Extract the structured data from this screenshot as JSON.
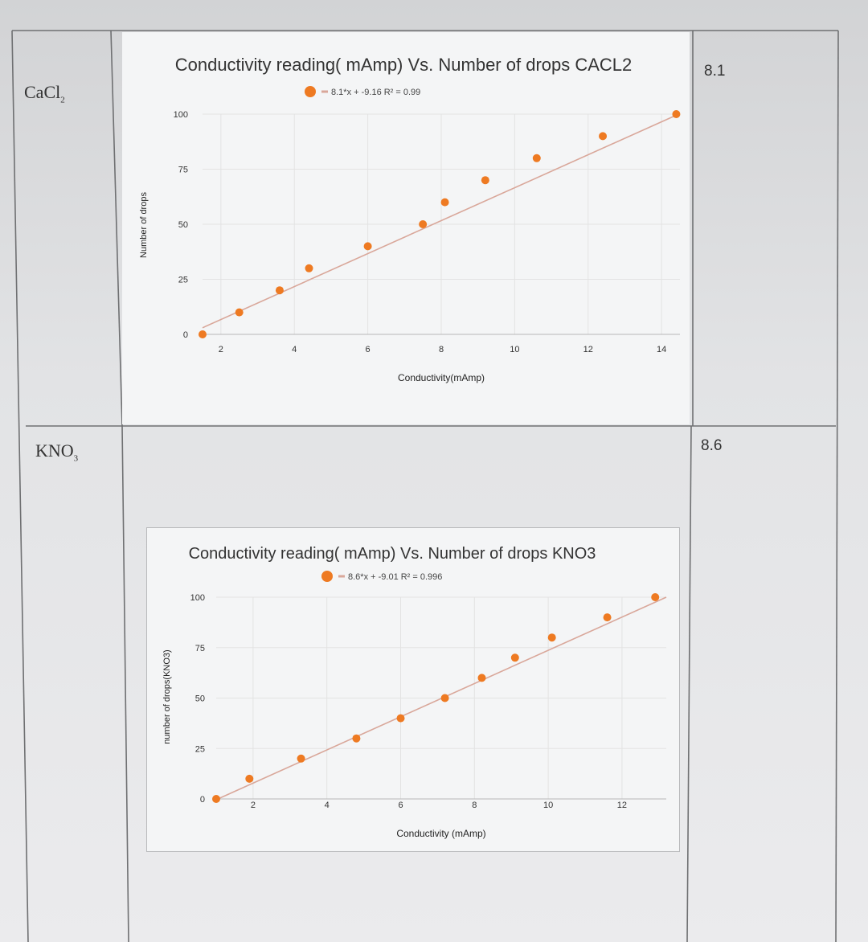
{
  "table": {
    "rows": [
      {
        "label_main": "CaCl",
        "label_sub": "2",
        "value": "8.1"
      },
      {
        "label_main": "KNO",
        "label_sub": "3",
        "value": "8.6"
      }
    ]
  },
  "colors": {
    "point": "#ee7a22",
    "trendline": "#d9a79a",
    "grid": "#e3e3e3"
  },
  "chart_data": [
    {
      "type": "scatter",
      "title": "Conductivity reading( mAmp) Vs. Number of drops CACL2",
      "legend": "8.1*x + -9.16 R² = 0.99",
      "legend_position": "top-center",
      "xlabel": "Conductivity(mAmp)",
      "ylabel": "Number of drops",
      "xlim": [
        1.5,
        14.5
      ],
      "ylim": [
        0,
        100
      ],
      "xticks": [
        "2",
        "4",
        "6",
        "8",
        "10",
        "12",
        "14"
      ],
      "yticks": [
        "0",
        "25",
        "50",
        "75",
        "100"
      ],
      "grid": true,
      "points": [
        {
          "x": 1.5,
          "y": 0
        },
        {
          "x": 2.5,
          "y": 10
        },
        {
          "x": 3.6,
          "y": 20
        },
        {
          "x": 4.4,
          "y": 30
        },
        {
          "x": 6.0,
          "y": 40
        },
        {
          "x": 7.5,
          "y": 50
        },
        {
          "x": 8.1,
          "y": 60
        },
        {
          "x": 9.2,
          "y": 70
        },
        {
          "x": 10.6,
          "y": 80
        },
        {
          "x": 12.4,
          "y": 90
        },
        {
          "x": 14.4,
          "y": 100
        }
      ],
      "trendline": {
        "slope": 8.1,
        "intercept": -9.16,
        "r2": 0.99
      }
    },
    {
      "type": "scatter",
      "title": "Conductivity reading( mAmp) Vs. Number of drops KNO3",
      "legend": "8.6*x + -9.01 R² = 0.996",
      "legend_position": "top-center",
      "xlabel": "Conductivity (mAmp)",
      "ylabel": "number of drops(KNO3)",
      "xlim": [
        1,
        13.2
      ],
      "ylim": [
        0,
        100
      ],
      "xticks": [
        "2",
        "4",
        "6",
        "8",
        "10",
        "12"
      ],
      "yticks": [
        "0",
        "25",
        "50",
        "75",
        "100"
      ],
      "grid": true,
      "points": [
        {
          "x": 1.0,
          "y": 0
        },
        {
          "x": 1.9,
          "y": 10
        },
        {
          "x": 3.3,
          "y": 20
        },
        {
          "x": 4.8,
          "y": 30
        },
        {
          "x": 6.0,
          "y": 40
        },
        {
          "x": 7.2,
          "y": 50
        },
        {
          "x": 8.2,
          "y": 60
        },
        {
          "x": 9.1,
          "y": 70
        },
        {
          "x": 10.1,
          "y": 80
        },
        {
          "x": 11.6,
          "y": 90
        },
        {
          "x": 12.9,
          "y": 100
        }
      ],
      "trendline": {
        "slope": 8.6,
        "intercept": -9.01,
        "r2": 0.996
      }
    }
  ]
}
